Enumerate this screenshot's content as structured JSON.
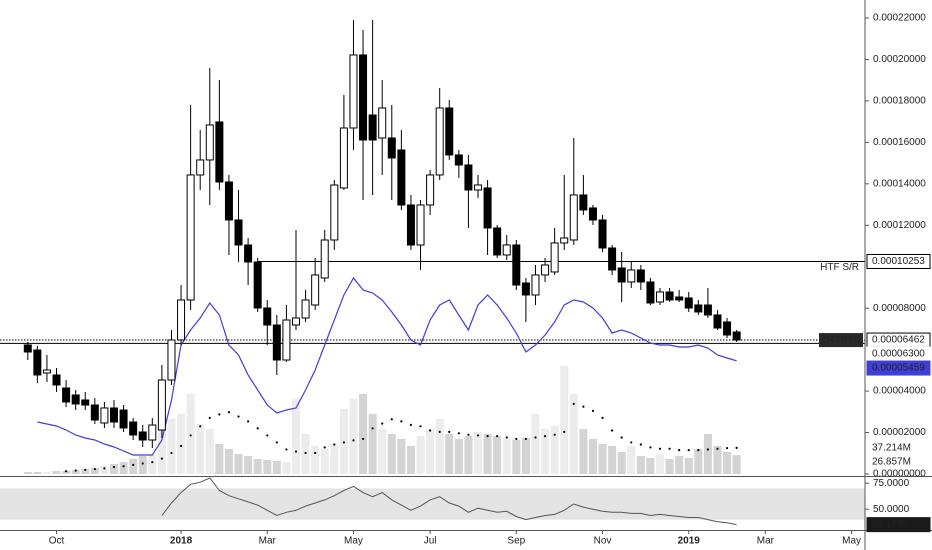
{
  "chart_data": {
    "type": "candlestick",
    "symbol": "ZRXBTC",
    "xlim": [
      -2.9,
      87.4
    ],
    "xticks": [
      {
        "value": 3,
        "label": "Oct"
      },
      {
        "value": 16,
        "label": "2018"
      },
      {
        "value": 25,
        "label": "Mar"
      },
      {
        "value": 34,
        "label": "May"
      },
      {
        "value": 42,
        "label": "Jul"
      },
      {
        "value": 51,
        "label": "Sep"
      },
      {
        "value": 60,
        "label": "Nov"
      },
      {
        "value": 69,
        "label": "2019"
      },
      {
        "value": 77,
        "label": "Mar"
      },
      {
        "value": 86,
        "label": "May"
      }
    ],
    "ylim": [
      0,
      0.00022
    ],
    "yticks": [
      {
        "value": 0,
        "label": "0.00000000"
      },
      {
        "value": 2e-05,
        "label": "0.00002000"
      },
      {
        "value": 4e-05,
        "label": "0.00004000"
      },
      {
        "value": 8e-05,
        "label": "0.00008000"
      },
      {
        "value": 0.00012,
        "label": "0.00012000"
      },
      {
        "value": 0.00014,
        "label": "0.00014000"
      },
      {
        "value": 0.00016,
        "label": "0.00016000"
      },
      {
        "value": 0.00018,
        "label": "0.00018000"
      },
      {
        "value": 0.0002,
        "label": "0.00020000"
      },
      {
        "value": 0.00022,
        "label": "0.00022000"
      }
    ],
    "up_color": "#ffffff",
    "down_color": "#000000",
    "outline_color": "#000000",
    "ohlc": [
      [
        6.224e-05,
        6.369e-05,
        5.5e-05,
        5.886e-05
      ],
      [
        5.983e-05,
        6.176e-05,
        4.391e-05,
        4.777e-05
      ],
      [
        4.873e-05,
        5.742e-05,
        4.439e-05,
        5.018e-05
      ],
      [
        4.777e-05,
        5.115e-05,
        3.957e-05,
        4.294e-05
      ],
      [
        4.149e-05,
        4.535e-05,
        3.233e-05,
        3.474e-05
      ],
      [
        3.812e-05,
        4.053e-05,
        3.088e-05,
        3.378e-05
      ],
      [
        3.571e-05,
        3.957e-05,
        3.088e-05,
        3.329e-05
      ],
      [
        3.329e-05,
        3.667e-05,
        2.413e-05,
        2.606e-05
      ],
      [
        2.461e-05,
        3.474e-05,
        2.22e-05,
        3.185e-05
      ],
      [
        3.185e-05,
        3.571e-05,
        2.22e-05,
        2.509e-05
      ],
      [
        3.088e-05,
        3.329e-05,
        2.027e-05,
        2.22e-05
      ],
      [
        2.509e-05,
        2.702e-05,
        1.641e-05,
        1.882e-05
      ],
      [
        2.027e-05,
        2.364e-05,
        1.303e-05,
        1.641e-05
      ],
      [
        1.641e-05,
        2.702e-05,
        1.255e-05,
        2.364e-05
      ],
      [
        2.123e-05,
        5.259e-05,
        1.737e-05,
        4.535e-05
      ],
      [
        4.535e-05,
        6.948e-05,
        4.294e-05,
        6.466e-05
      ],
      [
        6.466e-05,
        9.119e-05,
        6.224e-05,
        8.396e-05
      ],
      [
        8.396e-05,
        0.00017804,
        7.913e-05,
        0.00014427
      ],
      [
        0.00014427,
        0.00016598,
        0.00013703,
        0.00015151
      ],
      [
        0.00015151,
        0.0001959,
        0.00012979,
        0.0001684
      ],
      [
        0.00016984,
        0.00019011,
        0.00013703,
        0.00014089
      ],
      [
        0.00014089,
        0.00014427,
        0.00010567,
        0.00012256
      ],
      [
        0.00012256,
        0.00013703,
        0.00010229,
        0.00011049
      ],
      [
        0.00011049,
        0.00011387,
        9.119e-05,
        0.00010229
      ],
      [
        0.00010229,
        0.00010422,
        7.817e-05,
        8.01e-05
      ],
      [
        8.01e-05,
        8.396e-05,
        6.224e-05,
        7.189e-05
      ],
      [
        7.189e-05,
        7.672e-05,
        4.777e-05,
        5.5e-05
      ],
      [
        5.5e-05,
        8.154e-05,
        5.404e-05,
        7.43e-05
      ],
      [
        7.189e-05,
        0.00011773,
        6.948e-05,
        7.527e-05
      ],
      [
        7.527e-05,
        8.878e-05,
        7.334e-05,
        8.396e-05
      ],
      [
        8.154e-05,
        0.00010422,
        7.913e-05,
        9.602e-05
      ],
      [
        9.457e-05,
        0.00011773,
        9.264e-05,
        0.0001129
      ],
      [
        0.0001129,
        0.00014186,
        0.00010808,
        0.00013944
      ],
      [
        0.000138,
        0.00018287,
        0.00013703,
        0.00016694
      ],
      [
        0.00016694,
        0.00021906,
        0.00015633,
        0.00020217
      ],
      [
        0.00020217,
        0.00021423,
        0.0001322,
        0.00016115
      ],
      [
        0.00017321,
        0.00021906,
        0.00013462,
        0.00016115
      ],
      [
        0.00016212,
        0.00019011,
        0.00014427,
        0.00017659
      ],
      [
        0.00016212,
        0.00017804,
        0.0001322,
        0.00015247
      ],
      [
        0.00015633,
        0.00016598,
        0.00012738,
        0.00012979
      ],
      [
        0.00012979,
        0.00013462,
        0.00010808,
        0.00011049
      ],
      [
        0.00011049,
        0.0001322,
        9.843e-05,
        0.00012979
      ],
      [
        0.00012979,
        0.00014668,
        0.00012497,
        0.00014427
      ],
      [
        0.00014427,
        0.00018625,
        0.00014186,
        0.00017659
      ],
      [
        0.00017659,
        0.00018046,
        0.00015151,
        0.00015392
      ],
      [
        0.00015392,
        0.00015633,
        0.00014283,
        0.00014909
      ],
      [
        0.00014909,
        0.00015392,
        0.0001187,
        0.00013703
      ],
      [
        0.00013703,
        0.00014427,
        0.00013317,
        0.00013944
      ],
      [
        0.000138,
        0.00014186,
        0.00010567,
        0.0001187
      ],
      [
        0.0001187,
        0.00012014,
        0.00010422,
        0.00010567
      ],
      [
        0.00010567,
        0.00011532,
        0.00010325,
        0.00011049
      ],
      [
        0.00011049,
        0.0001129,
        8.878e-05,
        9.119e-05
      ],
      [
        9.216e-05,
        9.457e-05,
        7.334e-05,
        8.637e-05
      ],
      [
        8.637e-05,
        0.00010084,
        8.154e-05,
        9.602e-05
      ],
      [
        9.602e-05,
        0.00010422,
        9.264e-05,
        0.00010084
      ],
      [
        9.747e-05,
        0.0001187,
        9.602e-05,
        0.00011146
      ],
      [
        0.00011146,
        0.00014427,
        0.00010808,
        0.00011387
      ],
      [
        0.0001129,
        0.00016212,
        0.00011049,
        0.00013462
      ],
      [
        0.00013462,
        0.00014427,
        0.00012497,
        0.00012738
      ],
      [
        0.00012834,
        0.00012979,
        0.00012014,
        0.00012256
      ],
      [
        0.00012256,
        0.00012497,
        0.00010711,
        0.00010904
      ],
      [
        0.00010904,
        0.00011049,
        9.602e-05,
        9.843e-05
      ],
      [
        9.94e-05,
        0.00010711,
        8.299e-05,
        9.264e-05
      ],
      [
        9.264e-05,
        0.00010229,
        8.975e-05,
        9.843e-05
      ],
      [
        9.843e-05,
        0.00010084,
        8.878e-05,
        9.264e-05
      ],
      [
        9.264e-05,
        9.457e-05,
        8.154e-05,
        8.251e-05
      ],
      [
        8.299e-05,
        8.975e-05,
        8.154e-05,
        8.782e-05
      ],
      [
        8.782e-05,
        8.975e-05,
        8.299e-05,
        8.396e-05
      ],
      [
        8.54e-05,
        8.878e-05,
        8.299e-05,
        8.396e-05
      ],
      [
        8.492e-05,
        8.782e-05,
        7.817e-05,
        8.01e-05
      ],
      [
        8.154e-05,
        8.396e-05,
        7.672e-05,
        7.817e-05
      ],
      [
        8.154e-05,
        8.975e-05,
        7.527e-05,
        7.672e-05
      ],
      [
        7.672e-05,
        7.913e-05,
        6.948e-05,
        7.044e-05
      ],
      [
        7.334e-05,
        7.527e-05,
        6.562e-05,
        6.707e-05
      ],
      [
        6.852e-05,
        6.948e-05,
        6.369e-05,
        6.462e-05
      ]
    ],
    "last_price": {
      "value": 6.462e-05,
      "label": "0.00006462",
      "color": "#000000"
    },
    "levels": [
      {
        "name": "HTF S/R",
        "value": 0.00010253,
        "label": "0.00010253",
        "x_start": 24,
        "color": "#000000"
      },
      {
        "value": 6.3e-05,
        "label": "0.00006300",
        "color": "#000000"
      }
    ],
    "moving_average": {
      "color": "#3f3fd8",
      "last_label": "0.00005459",
      "values": [
        null,
        2.509e-05,
        2.412e-05,
        2.316e-05,
        2.123e-05,
        1.882e-05,
        1.737e-05,
        1.641e-05,
        1.448e-05,
        1.303e-05,
        1.11e-05,
        9.17e-06,
        9.17e-06,
        9.17e-06,
        1.641e-05,
        3.57e-05,
        6.224e-05,
        6.948e-05,
        7.527e-05,
        8.251e-05,
        7.672e-05,
        6.224e-05,
        5.742e-05,
        4.777e-05,
        4.053e-05,
        3.329e-05,
        2.943e-05,
        3.088e-05,
        3.185e-05,
        4.053e-05,
        5.018e-05,
        6.224e-05,
        7.43e-05,
        8.637e-05,
        9.457e-05,
        8.878e-05,
        8.733e-05,
        8.396e-05,
        7.817e-05,
        7.189e-05,
        6.465e-05,
        6.224e-05,
        7.43e-05,
        8.154e-05,
        8.396e-05,
        7.672e-05,
        6.948e-05,
        8.154e-05,
        8.637e-05,
        8.154e-05,
        7.527e-05,
        6.803e-05,
        5.887e-05,
        6.224e-05,
        6.707e-05,
        7.334e-05,
        8.154e-05,
        8.396e-05,
        8.299e-05,
        8.01e-05,
        7.527e-05,
        6.803e-05,
        6.948e-05,
        6.803e-05,
        6.562e-05,
        6.321e-05,
        6.224e-05,
        6.224e-05,
        6.128e-05,
        6.128e-05,
        6.224e-05,
        6.08e-05,
        5.742e-05,
        5.597e-05,
        5.459e-05
      ]
    },
    "volume": {
      "ylim": [
        0,
        650
      ],
      "up_color": "#ececec",
      "down_color": "#d4d4d4",
      "last_label": "26.857M",
      "values": [
        2.9,
        2.9,
        2.9,
        4.3,
        4.3,
        5.7,
        7.1,
        8.6,
        11.4,
        14.3,
        17.1,
        21.4,
        25.7,
        28.6,
        64.3,
        78.6,
        85.7,
        114.3,
        71.4,
        64.3,
        42.9,
        35.7,
        28.6,
        25.7,
        21.4,
        20,
        18.6,
        17.1,
        107.1,
        57.1,
        40,
        35.7,
        42.9,
        92.9,
        107.1,
        114.3,
        85.7,
        64.3,
        57.1,
        50,
        40,
        54.3,
        64.3,
        78.6,
        57.1,
        50,
        54.3,
        60,
        57.1,
        54.3,
        50,
        48.6,
        51.4,
        85.7,
        64.3,
        68.6,
        154.3,
        114.3,
        64.3,
        50,
        42.9,
        40,
        31.4,
        40,
        25.7,
        22.9,
        28.6,
        21.4,
        25.7,
        22.9,
        35.7,
        57.1,
        40,
        31.4,
        26.857
      ]
    },
    "volume_ma": {
      "color": "#000000",
      "last_label": "37.214M",
      "values": [
        null,
        null,
        null,
        null,
        4,
        5,
        6,
        7,
        8,
        10,
        11,
        13,
        15,
        17,
        22,
        30,
        40,
        55,
        68,
        80,
        85,
        88,
        82,
        75,
        65,
        55,
        45,
        35,
        32,
        30,
        30,
        38,
        42,
        45,
        48,
        50,
        65,
        72,
        78,
        75,
        70,
        68,
        62,
        60,
        60,
        58,
        56,
        55,
        54,
        54,
        52,
        50,
        50,
        52,
        54,
        56,
        60,
        100,
        96,
        90,
        80,
        62,
        52,
        45,
        42,
        38,
        36,
        36,
        34,
        34,
        34,
        35,
        36,
        37,
        37.214
      ]
    },
    "oscillator": {
      "ylim": [
        30,
        81
      ],
      "yticks": [
        {
          "value": 75,
          "label": "75.0000"
        },
        {
          "value": 50,
          "label": "50.0000"
        }
      ],
      "band": [
        40,
        70
      ],
      "color": "#555555",
      "last_label": "35.1775",
      "values": [
        null,
        null,
        null,
        null,
        null,
        null,
        null,
        null,
        null,
        null,
        null,
        null,
        null,
        null,
        44,
        56,
        66,
        74,
        76,
        80,
        68,
        63,
        60,
        57,
        54,
        49,
        44,
        47,
        49,
        53,
        56,
        59,
        63,
        68,
        72,
        66,
        62,
        66,
        59,
        54,
        49,
        53,
        59,
        62,
        56,
        53,
        47,
        51,
        49,
        47,
        48,
        43,
        40,
        42,
        44,
        45,
        49,
        55,
        52,
        50,
        48,
        47,
        47,
        46,
        46,
        44,
        45,
        44,
        43,
        42,
        42,
        40,
        38,
        37,
        35.1775
      ]
    }
  }
}
